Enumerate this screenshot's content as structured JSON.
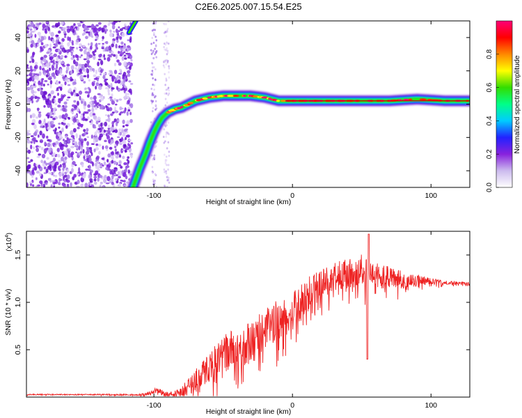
{
  "figure": {
    "title": "C2E6.2025.007.15.54.E25"
  },
  "chart_data": [
    {
      "type": "heatmap",
      "title": "C2E6.2025.007.15.54.E25",
      "xlabel": "Height of straight line (km)",
      "ylabel": "Frequency (Hz)",
      "xlim": [
        -192,
        128
      ],
      "ylim": [
        -50,
        50
      ],
      "x_ticks": [
        -100,
        0,
        100
      ],
      "y_ticks": [
        -40,
        -20,
        0,
        20,
        40
      ],
      "ridge": {
        "x": [
          -116,
          -113,
          -110,
          -106,
          -103,
          -100,
          -97,
          -94,
          -90,
          -85,
          -80,
          -75,
          -70,
          -65,
          -60,
          -55,
          -50,
          -45,
          -40,
          -35,
          -30,
          -25,
          -20,
          -15,
          -10,
          0,
          10,
          20,
          30,
          40,
          50,
          60,
          70,
          80,
          90,
          100,
          110,
          128
        ],
        "y": [
          -52,
          -45,
          -38,
          -30,
          -23,
          -17,
          -12,
          -8,
          -5,
          -3,
          -2,
          0,
          2,
          3,
          4,
          4.5,
          5,
          5,
          5,
          5,
          5,
          4.5,
          4,
          3,
          2,
          2,
          2,
          2,
          2,
          2,
          2,
          2,
          2,
          2.5,
          3,
          2.5,
          2,
          2
        ]
      },
      "upper_branch": {
        "x": [
          -118,
          -113
        ],
        "y": [
          43,
          50
        ]
      },
      "colorbar": {
        "label": "Normalized spectral amplitude",
        "range": [
          0.0,
          1.0
        ],
        "ticks": [
          0.0,
          0.2,
          0.4,
          0.6,
          0.8
        ],
        "tick_labels": [
          "0.0",
          "0.2",
          "0.4",
          "0.6",
          "0.8"
        ],
        "colors": [
          "#ffffff",
          "#ccbbee",
          "#8822dd",
          "#2222ff",
          "#00ccff",
          "#00ff88",
          "#33dd00",
          "#ffff00",
          "#ff8800",
          "#ff0000",
          "#ff0077"
        ]
      }
    },
    {
      "type": "line",
      "xlabel": "Height of straight line (km)",
      "ylabel": "SNR (10 * v/v)",
      "y_multiplier": "(x10",
      "y_multiplier_exp": "4",
      "y_multiplier_close": ")",
      "xlim": [
        -192,
        128
      ],
      "ylim": [
        0,
        1.75
      ],
      "x_ticks": [
        -100,
        0,
        100
      ],
      "y_ticks": [
        0.5,
        1.0,
        1.5
      ],
      "y_tick_labels": [
        "0.5",
        "1.0",
        "1.5"
      ],
      "color": "#ee2222",
      "series": [
        {
          "name": "SNR",
          "x": [
            -192,
            -150,
            -110,
            -103,
            -98,
            -92,
            -85,
            -80,
            -75,
            -70,
            -65,
            -60,
            -55,
            -50,
            -45,
            -40,
            -35,
            -30,
            -25,
            -20,
            -15,
            -10,
            -5,
            0,
            5,
            10,
            15,
            20,
            25,
            30,
            35,
            40,
            45,
            48,
            50,
            53,
            54,
            55,
            57,
            60,
            65,
            70,
            75,
            80,
            85,
            90,
            95,
            100,
            105,
            110,
            115,
            120,
            128
          ],
          "envelope": [
            0.03,
            0.03,
            0.03,
            0.05,
            0.09,
            0.05,
            0.05,
            0.08,
            0.16,
            0.24,
            0.32,
            0.4,
            0.48,
            0.55,
            0.6,
            0.62,
            0.65,
            0.68,
            0.75,
            0.82,
            0.88,
            0.92,
            0.96,
            1.0,
            1.08,
            1.16,
            1.22,
            1.26,
            1.3,
            1.34,
            1.36,
            1.38,
            1.4,
            1.42,
            1.44,
            1.4,
            1.75,
            1.4,
            1.38,
            1.36,
            1.34,
            1.32,
            1.3,
            1.28,
            1.27,
            1.26,
            1.25,
            1.24,
            1.23,
            1.22,
            1.22,
            1.21,
            1.21
          ],
          "noise": [
            0.005,
            0.005,
            0.01,
            0.02,
            0.03,
            0.03,
            0.03,
            0.06,
            0.09,
            0.12,
            0.14,
            0.16,
            0.18,
            0.2,
            0.2,
            0.21,
            0.21,
            0.22,
            0.22,
            0.22,
            0.22,
            0.22,
            0.21,
            0.2,
            0.2,
            0.19,
            0.18,
            0.18,
            0.17,
            0.16,
            0.16,
            0.16,
            0.16,
            0.16,
            0.18,
            0.16,
            0.18,
            0.16,
            0.14,
            0.14,
            0.13,
            0.12,
            0.1,
            0.09,
            0.08,
            0.07,
            0.05,
            0.04,
            0.03,
            0.02,
            0.02,
            0.015,
            0.015
          ],
          "spikes": [
            {
              "x": 54,
              "y": 0.4
            },
            {
              "x": 55,
              "y": 1.72
            },
            {
              "x": 53,
              "y": 1.65
            }
          ]
        }
      ]
    }
  ]
}
